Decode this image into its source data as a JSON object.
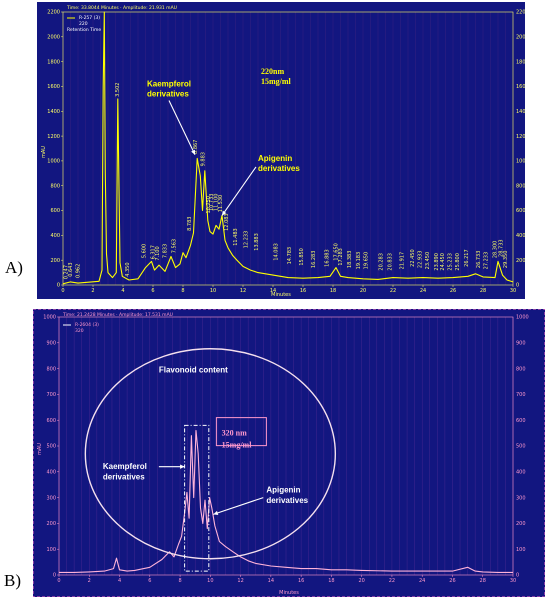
{
  "chart_data": [
    {
      "panel_label": "A)",
      "type": "line",
      "header_text": "Time: 33.8044 Minutes · Amplitude: 21.931 mAU",
      "legend_lines": [
        "R-257 (3)",
        "220",
        "Retention Time"
      ],
      "x_label": "Minutes",
      "y_label": "mAU",
      "xlim": [
        0,
        30
      ],
      "ylim": [
        0,
        2200
      ],
      "x_ticks": [
        0,
        2,
        4,
        6,
        8,
        10,
        12,
        14,
        16,
        18,
        20,
        22,
        24,
        26,
        28,
        30
      ],
      "y_ticks": [
        0,
        200,
        400,
        600,
        800,
        1000,
        1200,
        1400,
        1600,
        1800,
        2000,
        2200
      ],
      "colors": {
        "background": "#121680",
        "trace": "#ffff00",
        "axis_text": "#ffff66",
        "annotation": "#ffff00",
        "arrow": "#ffffff"
      },
      "trace": {
        "x": [
          0,
          0.5,
          1.0,
          2.4,
          2.6,
          2.68,
          2.75,
          2.82,
          2.9,
          3.0,
          3.3,
          3.55,
          3.65,
          3.72,
          3.8,
          3.95,
          4.4,
          5.0,
          5.5,
          5.9,
          6.1,
          6.4,
          6.8,
          7.2,
          7.5,
          7.8,
          8.0,
          8.2,
          8.5,
          8.7,
          8.95,
          9.15,
          9.3,
          9.45,
          9.65,
          9.8,
          10.0,
          10.2,
          10.4,
          10.6,
          10.8,
          11.0,
          11.3,
          11.6,
          12.0,
          12.5,
          13.0,
          13.5,
          14.0,
          15.0,
          16.0,
          17.0,
          17.8,
          18.2,
          18.5,
          19.0,
          20.0,
          21.0,
          22.0,
          23.0,
          24.0,
          25.0,
          26.0,
          27.0,
          27.5,
          28.0,
          28.8,
          29.0,
          29.3,
          29.6,
          30.0
        ],
        "y": [
          10,
          25,
          15,
          30,
          120,
          1600,
          2200,
          900,
          250,
          100,
          60,
          100,
          1500,
          900,
          180,
          70,
          40,
          50,
          140,
          190,
          120,
          160,
          110,
          230,
          140,
          170,
          260,
          220,
          320,
          420,
          1020,
          880,
          600,
          920,
          520,
          430,
          410,
          480,
          450,
          560,
          360,
          300,
          240,
          200,
          150,
          120,
          100,
          90,
          80,
          60,
          55,
          60,
          70,
          140,
          70,
          60,
          50,
          45,
          60,
          55,
          60,
          55,
          60,
          70,
          90,
          65,
          60,
          190,
          80,
          40,
          25
        ]
      },
      "peak_labels": [
        {
          "x": 0.3,
          "y": 30,
          "label": "0.247"
        },
        {
          "x": 0.6,
          "y": 50,
          "label": "0.643"
        },
        {
          "x": 1.1,
          "y": 40,
          "label": "0.962"
        },
        {
          "x": 3.75,
          "y": 1500,
          "label": "3.502"
        },
        {
          "x": 4.4,
          "y": 50,
          "label": "4.350"
        },
        {
          "x": 5.5,
          "y": 200,
          "label": "5.600"
        },
        {
          "x": 6.1,
          "y": 190,
          "label": "6.317"
        },
        {
          "x": 6.4,
          "y": 180,
          "label": "7.100"
        },
        {
          "x": 6.9,
          "y": 200,
          "label": "7.833"
        },
        {
          "x": 7.5,
          "y": 240,
          "label": "7.563"
        },
        {
          "x": 8.55,
          "y": 420,
          "label": "8.783"
        },
        {
          "x": 8.95,
          "y": 1040,
          "label": "8.867"
        },
        {
          "x": 9.45,
          "y": 940,
          "label": "9.883"
        },
        {
          "x": 9.8,
          "y": 560,
          "label": "10.250"
        },
        {
          "x": 10.0,
          "y": 580,
          "label": "10.733"
        },
        {
          "x": 10.3,
          "y": 580,
          "label": "11.100"
        },
        {
          "x": 10.6,
          "y": 570,
          "label": "11.530"
        },
        {
          "x": 11.0,
          "y": 420,
          "label": "12.083"
        },
        {
          "x": 11.6,
          "y": 300,
          "label": "11.483"
        },
        {
          "x": 12.3,
          "y": 280,
          "label": "12.233"
        },
        {
          "x": 13.0,
          "y": 260,
          "label": "13.883"
        },
        {
          "x": 14.3,
          "y": 180,
          "label": "14.083"
        },
        {
          "x": 15.2,
          "y": 150,
          "label": "14.783"
        },
        {
          "x": 16.0,
          "y": 140,
          "label": "15.850"
        },
        {
          "x": 16.8,
          "y": 120,
          "label": "16.283"
        },
        {
          "x": 17.7,
          "y": 130,
          "label": "16.883"
        },
        {
          "x": 18.3,
          "y": 180,
          "label": "17.650"
        },
        {
          "x": 18.6,
          "y": 140,
          "label": "17.283"
        },
        {
          "x": 19.2,
          "y": 120,
          "label": "18.383"
        },
        {
          "x": 19.8,
          "y": 110,
          "label": "19.183"
        },
        {
          "x": 20.3,
          "y": 110,
          "label": "19.650"
        },
        {
          "x": 21.3,
          "y": 100,
          "label": "20.283"
        },
        {
          "x": 21.9,
          "y": 100,
          "label": "20.833"
        },
        {
          "x": 22.7,
          "y": 110,
          "label": "21.917"
        },
        {
          "x": 23.4,
          "y": 130,
          "label": "22.450"
        },
        {
          "x": 23.9,
          "y": 120,
          "label": "22.933"
        },
        {
          "x": 24.4,
          "y": 110,
          "label": "23.450"
        },
        {
          "x": 25.0,
          "y": 100,
          "label": "23.890"
        },
        {
          "x": 25.4,
          "y": 100,
          "label": "24.450"
        },
        {
          "x": 25.9,
          "y": 100,
          "label": "25.233"
        },
        {
          "x": 26.4,
          "y": 100,
          "label": "25.800"
        },
        {
          "x": 27.0,
          "y": 130,
          "label": "26.217"
        },
        {
          "x": 27.8,
          "y": 120,
          "label": "26.733"
        },
        {
          "x": 28.3,
          "y": 110,
          "label": "27.233"
        },
        {
          "x": 28.9,
          "y": 200,
          "label": "28.300"
        },
        {
          "x": 29.3,
          "y": 210,
          "label": "28.733"
        },
        {
          "x": 29.6,
          "y": 120,
          "label": "29.350"
        }
      ],
      "annotations": [
        {
          "text": [
            "Kaempferol",
            "derivatives"
          ],
          "x": 5.6,
          "y": 1600,
          "arrow_to": [
            8.8,
            1050
          ],
          "font": "sans"
        },
        {
          "text": [
            "220nm",
            "15mg/ml"
          ],
          "x": 13.2,
          "y": 1700,
          "font": "serif"
        },
        {
          "text": [
            "Apigenin",
            "derivatives"
          ],
          "x": 13.0,
          "y": 1000,
          "arrow_to": [
            10.6,
            560
          ],
          "font": "sans"
        }
      ]
    },
    {
      "panel_label": "B)",
      "type": "line",
      "header_text": "Time: 21.2428 Minutes · Amplitude: 17.531 mAU",
      "legend_lines": [
        "R-2604 (3)",
        "320"
      ],
      "x_label": "Minutes",
      "y_label": "mAU",
      "xlim": [
        0,
        30
      ],
      "ylim": [
        0,
        1000
      ],
      "x_ticks": [
        0,
        2,
        4,
        6,
        8,
        10,
        12,
        14,
        16,
        18,
        20,
        22,
        24,
        26,
        28,
        30
      ],
      "y_ticks": [
        0,
        100,
        200,
        300,
        400,
        500,
        600,
        700,
        800,
        900,
        1000
      ],
      "colors": {
        "background": "#121680",
        "trace": "#ffb3d9",
        "axis_text": "#ff99cc",
        "annotation": "#ffffff",
        "ellipse": "#f5e0ee",
        "box": "#ff99cc"
      },
      "trace": {
        "x": [
          0,
          1,
          2,
          3,
          3.6,
          3.8,
          4.0,
          4.5,
          5.0,
          6.0,
          6.8,
          7.3,
          7.6,
          7.9,
          8.1,
          8.3,
          8.45,
          8.6,
          8.75,
          8.9,
          9.05,
          9.2,
          9.35,
          9.5,
          9.65,
          9.8,
          9.95,
          10.1,
          10.3,
          10.6,
          11.0,
          11.5,
          12.0,
          12.5,
          13.0,
          14.0,
          15.0,
          16.0,
          17.0,
          18.0,
          19.0,
          20.0,
          22.0,
          24.0,
          26.0,
          27.0,
          27.5,
          28.0,
          29.0,
          30.0
        ],
        "y": [
          10,
          10,
          12,
          15,
          25,
          65,
          20,
          15,
          18,
          30,
          60,
          90,
          70,
          120,
          150,
          240,
          320,
          220,
          540,
          300,
          560,
          470,
          260,
          200,
          290,
          180,
          300,
          260,
          190,
          130,
          110,
          90,
          70,
          55,
          45,
          35,
          30,
          25,
          25,
          20,
          20,
          18,
          15,
          15,
          15,
          30,
          15,
          12,
          10,
          10
        ]
      },
      "annotations": [
        {
          "text": [
            "Flavonoid content"
          ],
          "font": "sans"
        },
        {
          "text": [
            "320 nm",
            "15mg/ml"
          ],
          "font": "serif"
        },
        {
          "text": [
            "Kaempferol",
            "derivatives"
          ],
          "font": "sans"
        },
        {
          "text": [
            "Apigenin",
            "derivatives"
          ],
          "font": "sans"
        }
      ]
    }
  ]
}
